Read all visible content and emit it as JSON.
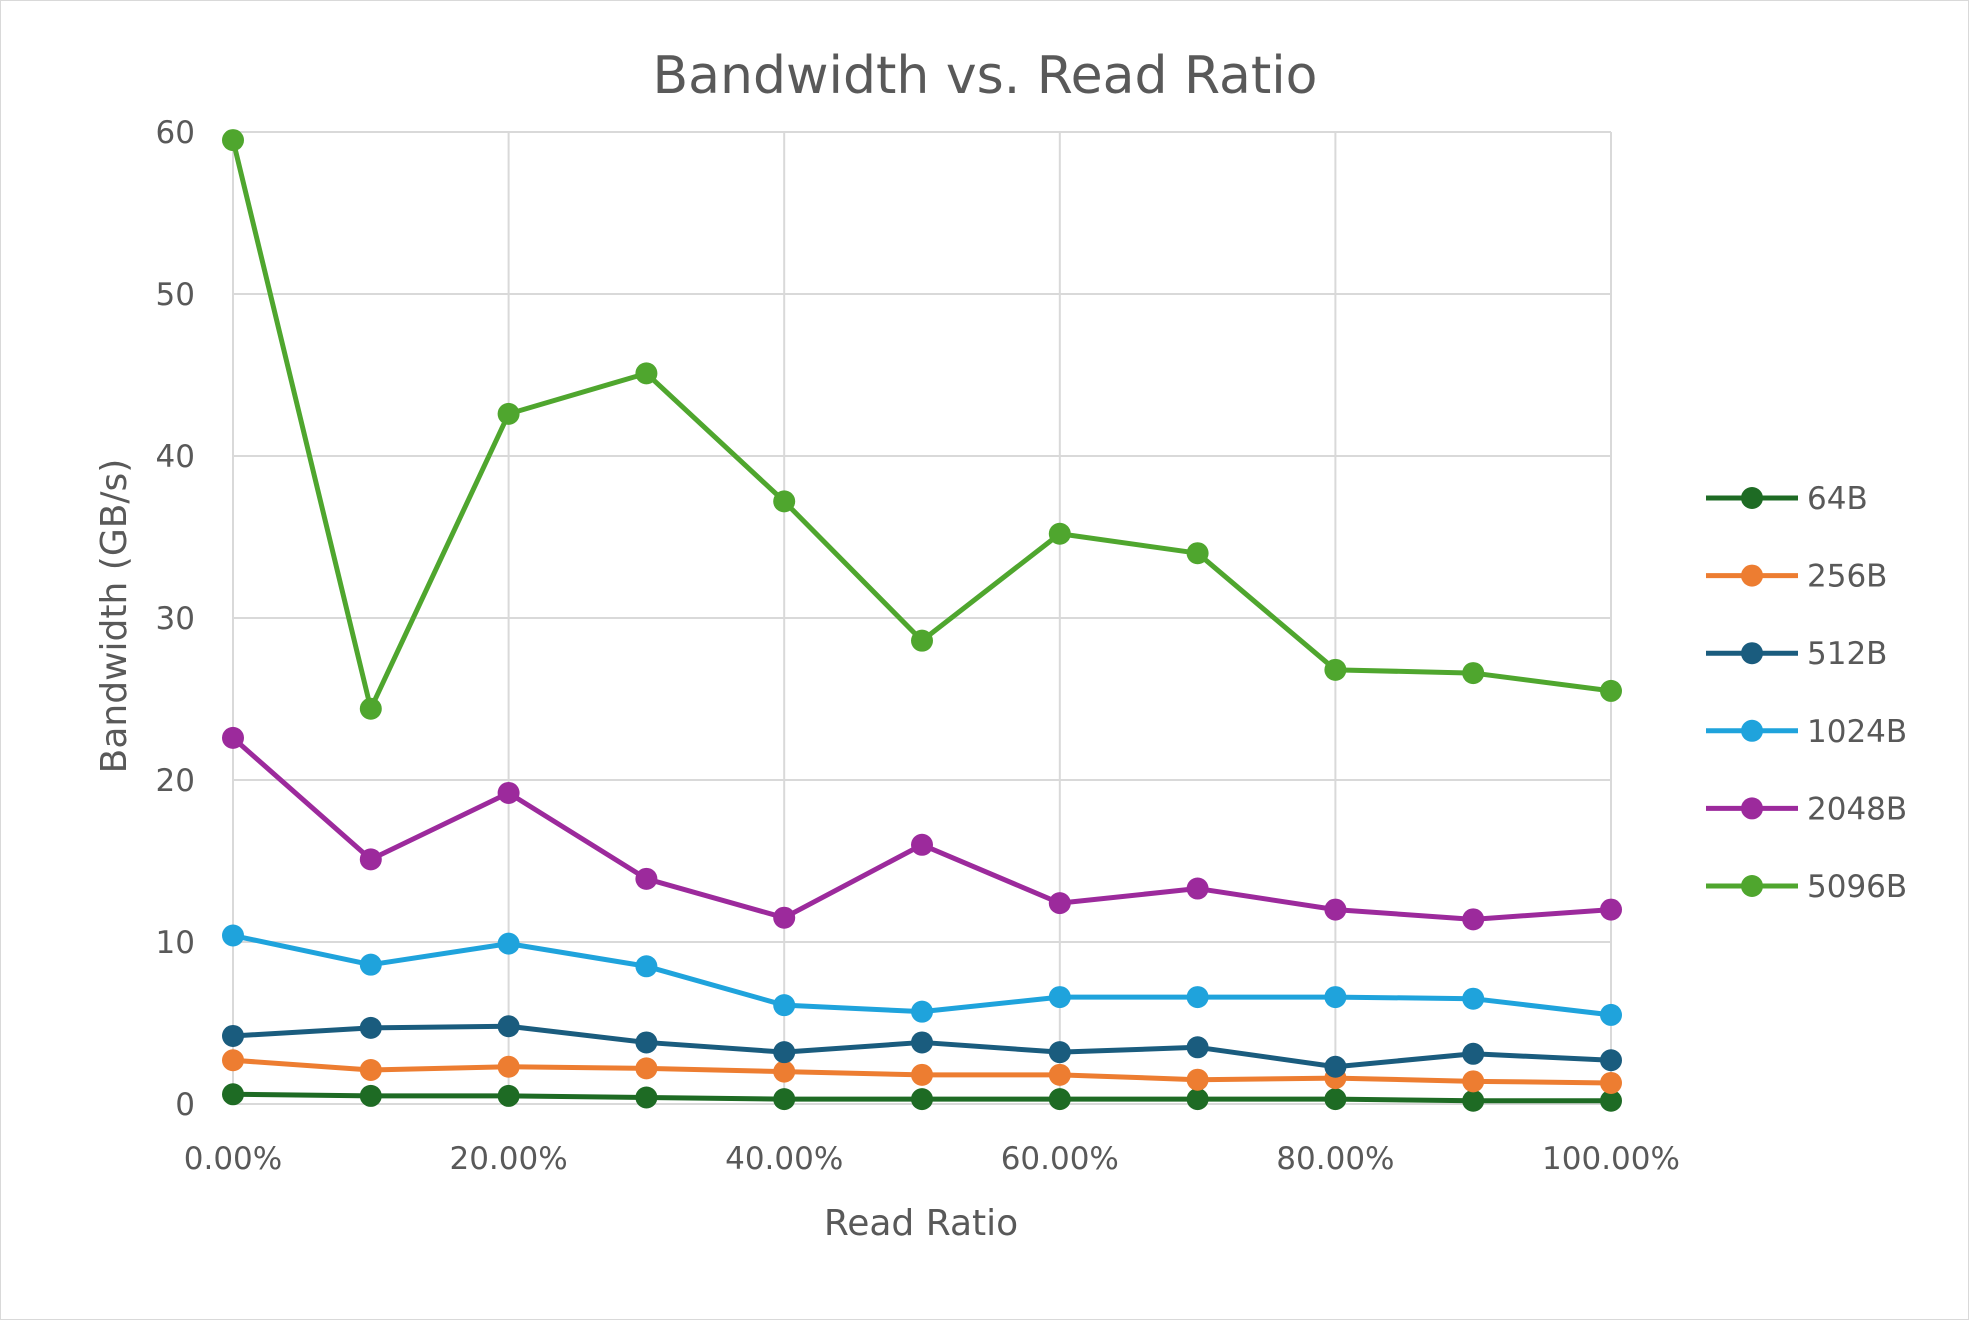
{
  "chart_data": {
    "type": "line",
    "title": "Bandwidth vs. Read Ratio",
    "xlabel": "Read Ratio",
    "ylabel": "Bandwidth (GB/s)",
    "x": [
      0,
      0.1,
      0.2,
      0.3,
      0.4,
      0.5,
      0.6,
      0.7,
      0.8,
      0.9,
      1.0
    ],
    "xlim": [
      0,
      1
    ],
    "ylim": [
      0,
      60
    ],
    "x_ticks": [
      {
        "value": 0,
        "label": "0.00%"
      },
      {
        "value": 0.2,
        "label": "20.00%"
      },
      {
        "value": 0.4,
        "label": "40.00%"
      },
      {
        "value": 0.6,
        "label": "60.00%"
      },
      {
        "value": 0.8,
        "label": "80.00%"
      },
      {
        "value": 1.0,
        "label": "100.00%"
      }
    ],
    "y_ticks": [
      {
        "value": 0,
        "label": "0"
      },
      {
        "value": 10,
        "label": "10"
      },
      {
        "value": 20,
        "label": "20"
      },
      {
        "value": 30,
        "label": "30"
      },
      {
        "value": 40,
        "label": "40"
      },
      {
        "value": 50,
        "label": "50"
      },
      {
        "value": 60,
        "label": "60"
      }
    ],
    "grid": true,
    "legend_position": "right",
    "series": [
      {
        "name": "64B",
        "color": "#1e6b24",
        "values": [
          0.6,
          0.5,
          0.5,
          0.4,
          0.3,
          0.3,
          0.3,
          0.3,
          0.3,
          0.2,
          0.2
        ]
      },
      {
        "name": "256B",
        "color": "#ed7d31",
        "values": [
          2.7,
          2.1,
          2.3,
          2.2,
          2.0,
          1.8,
          1.8,
          1.5,
          1.6,
          1.4,
          1.3
        ]
      },
      {
        "name": "512B",
        "color": "#1a5c7e",
        "values": [
          4.2,
          4.7,
          4.8,
          3.8,
          3.2,
          3.8,
          3.2,
          3.5,
          2.3,
          3.1,
          2.7
        ]
      },
      {
        "name": "1024B",
        "color": "#1fa3dc",
        "values": [
          10.4,
          8.6,
          9.9,
          8.5,
          6.1,
          5.7,
          6.6,
          6.6,
          6.6,
          6.5,
          5.5
        ]
      },
      {
        "name": "2048B",
        "color": "#9c2a9c",
        "values": [
          22.6,
          15.1,
          19.2,
          13.9,
          11.5,
          16.0,
          12.4,
          13.3,
          12.0,
          11.4,
          12.0
        ]
      },
      {
        "name": "5096B",
        "color": "#4fa62e",
        "values": [
          59.5,
          24.4,
          42.6,
          45.1,
          37.2,
          28.6,
          35.2,
          34.0,
          26.8,
          26.6,
          25.5
        ]
      }
    ]
  }
}
